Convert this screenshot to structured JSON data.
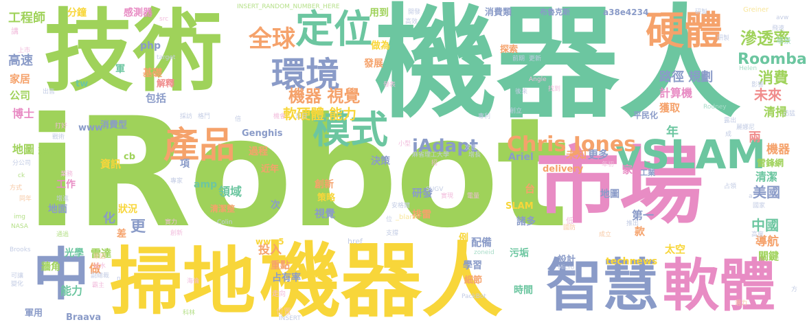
{
  "words": [
    {
      "id": "irobot",
      "text": "iRobot",
      "color": "#9fd25a"
    },
    {
      "id": "jishu",
      "text": "技術",
      "color": "#9fd25a"
    },
    {
      "id": "jiqiren-top",
      "text": "機器人",
      "color": "#6cc6a0"
    },
    {
      "id": "shichang",
      "text": "市場",
      "color": "#e88cc4"
    },
    {
      "id": "saodi",
      "text": "掃地",
      "color": "#f8d63a"
    },
    {
      "id": "jiqiren-bottom",
      "text": "機器人",
      "color": "#f8d63a"
    },
    {
      "id": "zhihui",
      "text": "智慧",
      "color": "#8a9bc8"
    },
    {
      "id": "ruanti",
      "text": "軟體",
      "color": "#e88cc4"
    },
    {
      "id": "zhong",
      "text": "中",
      "color": "#8a9bc8"
    },
    {
      "id": "vslam",
      "text": "vSLAM",
      "color": "#6cc6a0"
    },
    {
      "id": "chanpin",
      "text": "產品",
      "color": "#f5a26b"
    },
    {
      "id": "moshi",
      "text": "模式",
      "color": "#6cc6a0"
    },
    {
      "id": "huanjing",
      "text": "環境",
      "color": "#8a9bc8"
    },
    {
      "id": "dingwei",
      "text": "定位",
      "color": "#6cc6a0"
    },
    {
      "id": "yingti",
      "text": "硬體",
      "color": "#f5a26b"
    },
    {
      "id": "quanqiu",
      "text": "全球",
      "color": "#f5a26b"
    },
    {
      "id": "shentoulv",
      "text": "滲透率",
      "color": "#9fd25a"
    },
    {
      "id": "roomba",
      "text": "Roomba",
      "color": "#6cc6a0"
    },
    {
      "id": "xiaofei",
      "text": "消費",
      "color": "#9fd25a"
    },
    {
      "id": "weilai",
      "text": "未來",
      "color": "#f08c8c"
    },
    {
      "id": "jiqi-shijue",
      "text": "機器 視覺",
      "color": "#f5a26b"
    },
    {
      "id": "lujing",
      "text": "路徑 規劃",
      "color": "#8a9bc8"
    },
    {
      "id": "jisuanji",
      "text": "計算機",
      "color": "#e88cc4"
    },
    {
      "id": "ruanyingti",
      "text": "軟硬體 能力",
      "color": "#f8d63a"
    },
    {
      "id": "qingsao",
      "text": "清掃",
      "color": "#9fd25a"
    },
    {
      "id": "huoqu",
      "text": "獲取",
      "color": "#f5a26b"
    },
    {
      "id": "chris",
      "text": "Chris Jones",
      "color": "#f5a26b"
    },
    {
      "id": "iadapt",
      "text": "iAdapt",
      "color": "#8a9bc8"
    },
    {
      "id": "nian",
      "text": "年",
      "color": "#6cc6a0"
    },
    {
      "id": "liang",
      "text": "兩",
      "color": "#f08c8c"
    },
    {
      "id": "jiqi-right",
      "text": "機器",
      "color": "#f5a26b"
    },
    {
      "id": "leifeng",
      "text": "雷鋒網",
      "color": "#9fd25a"
    },
    {
      "id": "qingjie",
      "text": "清潔",
      "color": "#6cc6a0"
    },
    {
      "id": "meiguo",
      "text": "美國",
      "color": "#8a9bc8"
    },
    {
      "id": "zhongguo",
      "text": "中國",
      "color": "#6cc6a0"
    },
    {
      "id": "daohang",
      "text": "導航",
      "color": "#f5a26b"
    },
    {
      "id": "guanjian",
      "text": "關鍵",
      "color": "#9fd25a"
    },
    {
      "id": "taikong",
      "text": "太空",
      "color": "#f8d63a"
    },
    {
      "id": "technews",
      "text": "technews",
      "color": "#f8d63a"
    },
    {
      "id": "sheji",
      "text": "設計",
      "color": "#8a9bc8"
    },
    {
      "id": "gongchengshi",
      "text": "工程師",
      "color": "#9fd25a"
    },
    {
      "id": "fenzhong",
      "text": "分鐘",
      "color": "#f8d63a"
    },
    {
      "id": "ganceqi",
      "text": "感測器",
      "color": "#e88cc4"
    },
    {
      "id": "gaosu",
      "text": "高速",
      "color": "#8a9bc8"
    },
    {
      "id": "jiaju",
      "text": "家居",
      "color": "#f5a26b"
    },
    {
      "id": "gongsi",
      "text": "公司",
      "color": "#9fd25a"
    },
    {
      "id": "boshi",
      "text": "博士",
      "color": "#e88cc4"
    },
    {
      "id": "ditu-huizhi",
      "text": "地圖 繪製",
      "color": "#9fd25a"
    },
    {
      "id": "zixun",
      "text": "資訊",
      "color": "#f8d63a"
    },
    {
      "id": "gongzuo",
      "text": "工作",
      "color": "#e88cc4"
    },
    {
      "id": "dimian",
      "text": "地面",
      "color": "#8a9bc8"
    },
    {
      "id": "guangxue",
      "text": "光學",
      "color": "#6cc6a0"
    },
    {
      "id": "leida",
      "text": "雷達",
      "color": "#9fd25a"
    },
    {
      "id": "qiangjiao",
      "text": "牆角",
      "color": "#9fd25a"
    },
    {
      "id": "zuo",
      "text": "做",
      "color": "#f5a26b"
    },
    {
      "id": "nengli",
      "text": "能力",
      "color": "#6cc6a0"
    },
    {
      "id": "junyong",
      "text": "軍用",
      "color": "#8a9bc8"
    },
    {
      "id": "braava",
      "text": "Braava",
      "color": "#8a9bc8"
    },
    {
      "id": "jichu",
      "text": "基礎",
      "color": "#f5a26b"
    },
    {
      "id": "jieshi",
      "text": "解釋",
      "color": "#f08c8c"
    },
    {
      "id": "baokuo",
      "text": "包括",
      "color": "#8a9bc8"
    },
    {
      "id": "php",
      "text": "php",
      "color": "#8a9bc8"
    },
    {
      "id": "genghis",
      "text": "Genghis",
      "color": "#8a9bc8"
    },
    {
      "id": "www",
      "text": "www",
      "color": "#8a9bc8"
    },
    {
      "id": "xiaofeixing",
      "text": "消費型",
      "color": "#8a9bc8"
    },
    {
      "id": "guocheng",
      "text": "過程",
      "color": "#f5a26b"
    },
    {
      "id": "jinnian",
      "text": "近年",
      "color": "#f5a26b"
    },
    {
      "id": "cb",
      "text": "cb",
      "color": "#9fd25a"
    },
    {
      "id": "xiang",
      "text": "項",
      "color": "#8a9bc8"
    },
    {
      "id": "amp",
      "text": "amp",
      "color": "#6cc6a0"
    },
    {
      "id": "lingyu",
      "text": "領域",
      "color": "#6cc6a0"
    },
    {
      "id": "qingjiezheng",
      "text": "清潔整",
      "color": "#f5a26b"
    },
    {
      "id": "zhuangkuang",
      "text": "狀況",
      "color": "#f8d63a"
    },
    {
      "id": "hua",
      "text": "化",
      "color": "#8a9bc8"
    },
    {
      "id": "geng",
      "text": "更",
      "color": "#8a9bc8"
    },
    {
      "id": "cha",
      "text": "差",
      "color": "#f5a26b"
    },
    {
      "id": "juece",
      "text": "決策",
      "color": "#8a9bc8"
    },
    {
      "id": "chuangxin",
      "text": "創新",
      "color": "#f5a26b"
    },
    {
      "id": "celue",
      "text": "策略",
      "color": "#f8d63a"
    },
    {
      "id": "yanfa",
      "text": "研發",
      "color": "#8a9bc8"
    },
    {
      "id": "shijue",
      "text": "視覺",
      "color": "#8a9bc8"
    },
    {
      "id": "touru",
      "text": "投入",
      "color": "#f5a26b"
    },
    {
      "id": "zhongdian",
      "text": "重點",
      "color": "#f5a26b"
    },
    {
      "id": "zhanyoulv",
      "text": "占有率",
      "color": "#8a9bc8"
    },
    {
      "id": "www5",
      "text": "www5",
      "color": "#f8d63a"
    },
    {
      "id": "ci",
      "text": "次",
      "color": "#8a9bc8"
    },
    {
      "id": "xuexi",
      "text": "學習",
      "color": "#8a9bc8"
    },
    {
      "id": "xibu",
      "text": "細節",
      "color": "#f5a26b"
    },
    {
      "id": "paileii",
      "text": "排雷",
      "color": "#f5a26b"
    },
    {
      "id": "peibei",
      "text": "配備",
      "color": "#8a9bc8"
    },
    {
      "id": "li",
      "text": "例",
      "color": "#f8d63a"
    },
    {
      "id": "wugou",
      "text": "污垢",
      "color": "#6cc6a0"
    },
    {
      "id": "shijian",
      "text": "時間",
      "color": "#6cc6a0"
    },
    {
      "id": "tai",
      "text": "台",
      "color": "#f5a26b"
    },
    {
      "id": "slam",
      "text": "SLAM",
      "color": "#f8d63a"
    },
    {
      "id": "zhuduo",
      "text": "諸多",
      "color": "#8a9bc8"
    },
    {
      "id": "delivery",
      "text": "delivery",
      "color": "#f5a26b"
    },
    {
      "id": "ariel",
      "text": "Ariel",
      "color": "#8a9bc8"
    },
    {
      "id": "weizhi",
      "text": "未知",
      "color": "#f5a26b"
    },
    {
      "id": "gengduo",
      "text": "更多",
      "color": "#8a9bc8"
    },
    {
      "id": "jia",
      "text": "家",
      "color": "#e88cc4"
    },
    {
      "id": "ditu",
      "text": "地圖",
      "color": "#8a9bc8"
    },
    {
      "id": "diyi",
      "text": "第一",
      "color": "#8a9bc8"
    },
    {
      "id": "kuan",
      "text": "款",
      "color": "#f5a26b"
    },
    {
      "id": "gongye",
      "text": "工業",
      "color": "#8a9bc8"
    },
    {
      "id": "pingminhua",
      "text": "平民化",
      "color": "#8a9bc8"
    },
    {
      "id": "yongdao",
      "text": "用到",
      "color": "#9fd25a"
    },
    {
      "id": "zuowei",
      "text": "做為",
      "color": "#f8d63a"
    },
    {
      "id": "fazhan",
      "text": "發展",
      "color": "#f5a26b"
    },
    {
      "id": "xiaofeilei",
      "text": "消費類",
      "color": "#8a9bc8"
    },
    {
      "id": "tansuo",
      "text": "探索",
      "color": "#f5a26b"
    },
    {
      "id": "bulukesi",
      "text": "布魯克斯",
      "color": "#8a9bc8"
    },
    {
      "id": "hash",
      "text": "a38e4234",
      "color": "#8a9bc8"
    },
    {
      "id": "jun",
      "text": "軍",
      "color": "#6cc6a0"
    },
    {
      "id": "tw",
      "text": "tw",
      "color": "#6cc6a0"
    },
    {
      "id": "insert",
      "text": "INSERT_RANDOM_NUMBER_HERE",
      "color": "#b6e08a"
    },
    {
      "id": "xunqiu",
      "text": "迅猛",
      "color": "#c3cce4"
    },
    {
      "id": "greiner",
      "text": "Greiner",
      "color": "#f8e69a"
    },
    {
      "id": "avw",
      "text": "avw",
      "color": "#c3cce4"
    },
    {
      "id": "feiyue",
      "text": "飛速",
      "color": "#c3cce4"
    },
    {
      "id": "changjing",
      "text": "場景",
      "color": "#a8dcc8"
    },
    {
      "id": "helen",
      "text": "Helen",
      "color": "#a8dcc8"
    },
    {
      "id": "angle",
      "text": "Angle",
      "color": "#f2bcdc"
    },
    {
      "id": "rodney",
      "text": "Rodney",
      "color": "#a8dcc8"
    },
    {
      "id": "colin",
      "text": "Colin",
      "color": "#c3cce4"
    },
    {
      "id": "brooks",
      "text": "Brooks",
      "color": "#c3cce4"
    },
    {
      "id": "nasa",
      "text": "NASA",
      "color": "#b6e08a"
    },
    {
      "id": "img",
      "text": "img",
      "color": "#b6e08a"
    },
    {
      "id": "ck",
      "text": "ck",
      "color": "#b6e08a"
    },
    {
      "id": "fengongsi",
      "text": "分公司",
      "color": "#c3cce4"
    },
    {
      "id": "fangshi",
      "text": "方式",
      "color": "#f7c8a3"
    },
    {
      "id": "href",
      "text": "href",
      "color": "#c3cce4"
    },
    {
      "id": "blank",
      "text": "_blank'",
      "color": "#f8e69a"
    },
    {
      "id": "zoneid",
      "text": "zoneid",
      "color": "#a8dcc8"
    },
    {
      "id": "micro",
      "text": "Micro",
      "color": "#c3cce4"
    },
    {
      "id": "packbot",
      "text": "PackBot",
      "color": "#c3cce4"
    },
    {
      "id": "sugv",
      "text": "SUGV",
      "color": "#c3cce4"
    },
    {
      "id": "insert2",
      "text": "INSERT",
      "color": "#c3cce4"
    },
    {
      "id": "mit",
      "text": "麻省理工大學",
      "color": "#c3cce4"
    },
    {
      "id": "anigeli",
      "text": "安格爾",
      "color": "#c3cce4"
    },
    {
      "id": "src",
      "text": "src",
      "color": "#f2bcdc"
    },
    {
      "id": "target",
      "text": "target",
      "color": "#c3cce4"
    },
    {
      "id": "jiang",
      "text": "講",
      "color": "#f2bcdc"
    },
    {
      "id": "gaodu",
      "text": "高度",
      "color": "#c3cce4"
    },
    {
      "id": "guojia",
      "text": "國家",
      "color": "#c3cce4"
    },
    {
      "id": "weizhi2",
      "text": "位置",
      "color": "#f7c8a3"
    },
    {
      "id": "zouxiang",
      "text": "走向",
      "color": "#f2bcdc"
    },
    {
      "id": "chuangli",
      "text": "創立",
      "color": "#c3cce4"
    },
    {
      "id": "houlai",
      "text": "後來",
      "color": "#c3cce4"
    },
    {
      "id": "kaifa",
      "text": "開發",
      "color": "#c3cce4"
    },
    {
      "id": "gaoxiao",
      "text": "高效",
      "color": "#c3cce4"
    },
    {
      "id": "qianqi",
      "text": "前期",
      "color": "#c3cce4"
    },
    {
      "id": "gengxin",
      "text": "更新",
      "color": "#c3cce4"
    },
    {
      "id": "chuangjie",
      "text": "打好",
      "color": "#f2bcdc"
    },
    {
      "id": "zhanyi",
      "text": "戰術",
      "color": "#c3cce4"
    },
    {
      "id": "keyi",
      "text": "可讓",
      "color": "#c3cce4"
    },
    {
      "id": "bianhua",
      "text": "變化",
      "color": "#c3cce4"
    },
    {
      "id": "kelin",
      "text": "科林",
      "color": "#b6e08a"
    },
    {
      "id": "haishen",
      "text": "海倫",
      "color": "#f2bcdc"
    },
    {
      "id": "chengli",
      "text": "成立",
      "color": "#f7c8a3"
    },
    {
      "id": "tuichu",
      "text": "推出",
      "color": "#c3cce4"
    },
    {
      "id": "yanhuo",
      "text": "露出",
      "color": "#c3cce4"
    },
    {
      "id": "dianlin",
      "text": "電量",
      "color": "#f2bcdc"
    },
    {
      "id": "nianchu",
      "text": "年初",
      "color": "#f2bcdc"
    },
    {
      "id": "zhuanjia",
      "text": "專家",
      "color": "#c3cce4"
    },
    {
      "id": "ye",
      "text": "業務",
      "color": "#f2bcdc"
    },
    {
      "id": "tongnian",
      "text": "同年",
      "color": "#f7c8a3"
    },
    {
      "id": "zengjin",
      "text": "增進",
      "color": "#c3cce4"
    },
    {
      "id": "tongguo",
      "text": "通過",
      "color": "#b6e08a"
    },
    {
      "id": "yuanyin",
      "text": "原因",
      "color": "#f7c8a3"
    },
    {
      "id": "shishou",
      "text": "試水",
      "color": "#f2bcdc"
    },
    {
      "id": "fuzongcai",
      "text": "副總裁",
      "color": "#c3cce4"
    },
    {
      "id": "zhanling",
      "text": "霸主",
      "color": "#f2bcdc"
    },
    {
      "id": "xiaoxing",
      "text": "小型",
      "color": "#f2bcdc"
    },
    {
      "id": "dadao",
      "text": "找到",
      "color": "#f2bcdc"
    },
    {
      "id": "yingxiang",
      "text": "影響",
      "color": "#c3cce4"
    },
    {
      "id": "shili",
      "text": "實力",
      "color": "#f2bcdc"
    },
    {
      "id": "chuangxin2",
      "text": "創新",
      "color": "#f2bcdc"
    },
    {
      "id": "zhichi",
      "text": "支撐",
      "color": "#c3cce4"
    },
    {
      "id": "di",
      "text": "低",
      "color": "#f2bcdc"
    },
    {
      "id": "guofang",
      "text": "國防",
      "color": "#f7c8a3"
    },
    {
      "id": "shangshi",
      "text": "上市",
      "color": "#f2bcdc"
    },
    {
      "id": "chushou",
      "text": "出售",
      "color": "#c3cce4"
    },
    {
      "id": "qiantu",
      "text": "潛力",
      "color": "#f7c8a3"
    },
    {
      "id": "fang",
      "text": "方",
      "color": "#c3cce4"
    },
    {
      "id": "a",
      "text": "a",
      "color": "#c3cce4"
    },
    {
      "id": "cheng",
      "text": "成",
      "color": "#c3cce4"
    },
    {
      "id": "yanjiu",
      "text": "研製",
      "color": "#c3cce4"
    },
    {
      "id": "lilang",
      "text": "麗娜尼",
      "color": "#c3cce4"
    },
    {
      "id": "zhanling2",
      "text": "占領",
      "color": "#c3cce4"
    },
    {
      "id": "n",
      "text": "n",
      "color": "#c3cce4"
    },
    {
      "id": "guzhuang",
      "text": "格鬥",
      "color": "#c3cce4"
    },
    {
      "id": "caimo",
      "text": "採訪",
      "color": "#c3cce4"
    },
    {
      "id": "jihui",
      "text": "機會",
      "color": "#f2bcdc"
    },
    {
      "id": "jinri",
      "text": "近日",
      "color": "#c3cce4"
    },
    {
      "id": "zhi",
      "text": "倍",
      "color": "#c3cce4"
    },
    {
      "id": "fabiao",
      "text": "發表",
      "color": "#f2bcdc"
    },
    {
      "id": "zhiyuan",
      "text": "招",
      "color": "#f2bcdc"
    },
    {
      "id": "zengzhang",
      "text": "增長",
      "color": "#c3cce4"
    },
    {
      "id": "cishi",
      "text": "次世",
      "color": "#c3cce4"
    },
    {
      "id": "zhuanli",
      "text": "專利",
      "color": "#c3cce4"
    },
    {
      "id": "shijie",
      "text": "實現",
      "color": "#f2bcdc"
    },
    {
      "id": "wei",
      "text": "位",
      "color": "#c3cce4"
    },
    {
      "id": "yanxu",
      "text": "研製",
      "color": "#c3cce4"
    }
  ]
}
